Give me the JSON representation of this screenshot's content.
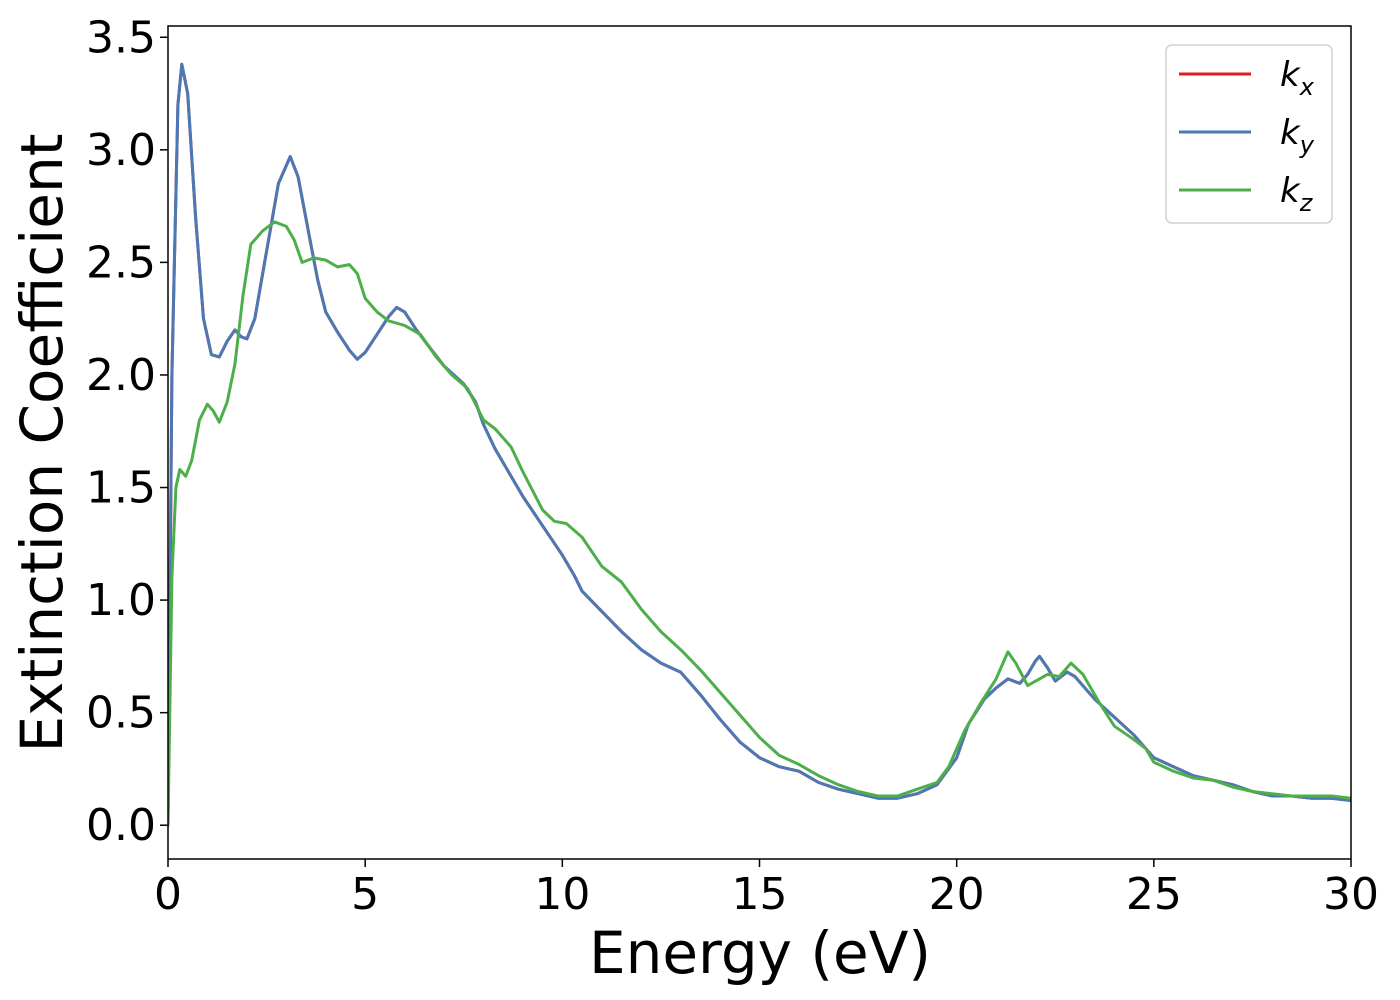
{
  "chart_data": {
    "type": "line",
    "xlabel": "Energy (eV)",
    "ylabel": "Extinction Coefficient",
    "xlim": [
      0,
      30
    ],
    "ylim": [
      -0.15,
      3.55
    ],
    "xticks": [
      0,
      5,
      10,
      15,
      20,
      25,
      30
    ],
    "xtick_labels": [
      "0",
      "5",
      "10",
      "15",
      "20",
      "25",
      "30"
    ],
    "yticks": [
      0.0,
      0.5,
      1.0,
      1.5,
      2.0,
      2.5,
      3.0,
      3.5
    ],
    "ytick_labels": [
      "0.0",
      "0.5",
      "1.0",
      "1.5",
      "2.0",
      "2.5",
      "3.0",
      "3.5"
    ],
    "grid": false,
    "legend_position": "top-right",
    "series": [
      {
        "name": "k_x",
        "legend_base": "k",
        "legend_sub": "x",
        "color": "#e41a1c",
        "points": [
          [
            0,
            0
          ],
          [
            0.1,
            2.0
          ],
          [
            0.25,
            3.2
          ],
          [
            0.35,
            3.38
          ],
          [
            0.5,
            3.25
          ],
          [
            0.7,
            2.7
          ],
          [
            0.9,
            2.25
          ],
          [
            1.1,
            2.09
          ],
          [
            1.3,
            2.08
          ],
          [
            1.5,
            2.15
          ],
          [
            1.7,
            2.2
          ],
          [
            1.85,
            2.17
          ],
          [
            2.0,
            2.16
          ],
          [
            2.2,
            2.25
          ],
          [
            2.5,
            2.55
          ],
          [
            2.8,
            2.85
          ],
          [
            3.1,
            2.97
          ],
          [
            3.3,
            2.88
          ],
          [
            3.6,
            2.6
          ],
          [
            3.8,
            2.42
          ],
          [
            4.0,
            2.28
          ],
          [
            4.3,
            2.19
          ],
          [
            4.6,
            2.11
          ],
          [
            4.8,
            2.07
          ],
          [
            5.0,
            2.1
          ],
          [
            5.3,
            2.18
          ],
          [
            5.6,
            2.26
          ],
          [
            5.8,
            2.3
          ],
          [
            6.0,
            2.28
          ],
          [
            6.3,
            2.2
          ],
          [
            6.6,
            2.13
          ],
          [
            7.0,
            2.04
          ],
          [
            7.5,
            1.96
          ],
          [
            7.8,
            1.88
          ],
          [
            8.0,
            1.78
          ],
          [
            8.3,
            1.67
          ],
          [
            8.7,
            1.55
          ],
          [
            9.0,
            1.46
          ],
          [
            9.5,
            1.33
          ],
          [
            10.0,
            1.2
          ],
          [
            10.3,
            1.11
          ],
          [
            10.5,
            1.04
          ],
          [
            11.0,
            0.95
          ],
          [
            11.5,
            0.86
          ],
          [
            12.0,
            0.78
          ],
          [
            12.5,
            0.72
          ],
          [
            13.0,
            0.68
          ],
          [
            13.5,
            0.58
          ],
          [
            14.0,
            0.47
          ],
          [
            14.5,
            0.37
          ],
          [
            15.0,
            0.3
          ],
          [
            15.5,
            0.26
          ],
          [
            16.0,
            0.24
          ],
          [
            16.5,
            0.19
          ],
          [
            17.0,
            0.16
          ],
          [
            17.5,
            0.14
          ],
          [
            18.0,
            0.12
          ],
          [
            18.5,
            0.12
          ],
          [
            19.0,
            0.14
          ],
          [
            19.5,
            0.18
          ],
          [
            20.0,
            0.3
          ],
          [
            20.3,
            0.45
          ],
          [
            20.7,
            0.56
          ],
          [
            21.0,
            0.61
          ],
          [
            21.3,
            0.65
          ],
          [
            21.6,
            0.63
          ],
          [
            21.8,
            0.67
          ],
          [
            22.0,
            0.73
          ],
          [
            22.1,
            0.75
          ],
          [
            22.3,
            0.7
          ],
          [
            22.5,
            0.64
          ],
          [
            22.8,
            0.68
          ],
          [
            23.0,
            0.66
          ],
          [
            23.5,
            0.56
          ],
          [
            24.0,
            0.48
          ],
          [
            24.5,
            0.4
          ],
          [
            25.0,
            0.3
          ],
          [
            25.5,
            0.26
          ],
          [
            26.0,
            0.22
          ],
          [
            26.5,
            0.2
          ],
          [
            27.0,
            0.18
          ],
          [
            27.5,
            0.15
          ],
          [
            28.0,
            0.13
          ],
          [
            28.5,
            0.13
          ],
          [
            29.0,
            0.12
          ],
          [
            29.5,
            0.12
          ],
          [
            30.0,
            0.11
          ]
        ]
      },
      {
        "name": "k_y",
        "legend_base": "k",
        "legend_sub": "y",
        "color": "#4a79b5",
        "points": [
          [
            0,
            0
          ],
          [
            0.1,
            2.0
          ],
          [
            0.25,
            3.2
          ],
          [
            0.35,
            3.38
          ],
          [
            0.5,
            3.25
          ],
          [
            0.7,
            2.7
          ],
          [
            0.9,
            2.25
          ],
          [
            1.1,
            2.09
          ],
          [
            1.3,
            2.08
          ],
          [
            1.5,
            2.15
          ],
          [
            1.7,
            2.2
          ],
          [
            1.85,
            2.17
          ],
          [
            2.0,
            2.16
          ],
          [
            2.2,
            2.25
          ],
          [
            2.5,
            2.55
          ],
          [
            2.8,
            2.85
          ],
          [
            3.1,
            2.97
          ],
          [
            3.3,
            2.88
          ],
          [
            3.6,
            2.6
          ],
          [
            3.8,
            2.42
          ],
          [
            4.0,
            2.28
          ],
          [
            4.3,
            2.19
          ],
          [
            4.6,
            2.11
          ],
          [
            4.8,
            2.07
          ],
          [
            5.0,
            2.1
          ],
          [
            5.3,
            2.18
          ],
          [
            5.6,
            2.26
          ],
          [
            5.8,
            2.3
          ],
          [
            6.0,
            2.28
          ],
          [
            6.3,
            2.2
          ],
          [
            6.6,
            2.13
          ],
          [
            7.0,
            2.04
          ],
          [
            7.5,
            1.96
          ],
          [
            7.8,
            1.88
          ],
          [
            8.0,
            1.78
          ],
          [
            8.3,
            1.67
          ],
          [
            8.7,
            1.55
          ],
          [
            9.0,
            1.46
          ],
          [
            9.5,
            1.33
          ],
          [
            10.0,
            1.2
          ],
          [
            10.3,
            1.11
          ],
          [
            10.5,
            1.04
          ],
          [
            11.0,
            0.95
          ],
          [
            11.5,
            0.86
          ],
          [
            12.0,
            0.78
          ],
          [
            12.5,
            0.72
          ],
          [
            13.0,
            0.68
          ],
          [
            13.5,
            0.58
          ],
          [
            14.0,
            0.47
          ],
          [
            14.5,
            0.37
          ],
          [
            15.0,
            0.3
          ],
          [
            15.5,
            0.26
          ],
          [
            16.0,
            0.24
          ],
          [
            16.5,
            0.19
          ],
          [
            17.0,
            0.16
          ],
          [
            17.5,
            0.14
          ],
          [
            18.0,
            0.12
          ],
          [
            18.5,
            0.12
          ],
          [
            19.0,
            0.14
          ],
          [
            19.5,
            0.18
          ],
          [
            20.0,
            0.3
          ],
          [
            20.3,
            0.45
          ],
          [
            20.7,
            0.56
          ],
          [
            21.0,
            0.61
          ],
          [
            21.3,
            0.65
          ],
          [
            21.6,
            0.63
          ],
          [
            21.8,
            0.67
          ],
          [
            22.0,
            0.73
          ],
          [
            22.1,
            0.75
          ],
          [
            22.3,
            0.7
          ],
          [
            22.5,
            0.64
          ],
          [
            22.8,
            0.68
          ],
          [
            23.0,
            0.66
          ],
          [
            23.5,
            0.56
          ],
          [
            24.0,
            0.48
          ],
          [
            24.5,
            0.4
          ],
          [
            25.0,
            0.3
          ],
          [
            25.5,
            0.26
          ],
          [
            26.0,
            0.22
          ],
          [
            26.5,
            0.2
          ],
          [
            27.0,
            0.18
          ],
          [
            27.5,
            0.15
          ],
          [
            28.0,
            0.13
          ],
          [
            28.5,
            0.13
          ],
          [
            29.0,
            0.12
          ],
          [
            29.5,
            0.12
          ],
          [
            30.0,
            0.11
          ]
        ]
      },
      {
        "name": "k_z",
        "legend_base": "k",
        "legend_sub": "z",
        "color": "#4daf4a",
        "points": [
          [
            0,
            0
          ],
          [
            0.1,
            1.1
          ],
          [
            0.2,
            1.5
          ],
          [
            0.3,
            1.58
          ],
          [
            0.45,
            1.55
          ],
          [
            0.6,
            1.62
          ],
          [
            0.8,
            1.8
          ],
          [
            1.0,
            1.87
          ],
          [
            1.15,
            1.84
          ],
          [
            1.3,
            1.79
          ],
          [
            1.5,
            1.88
          ],
          [
            1.7,
            2.05
          ],
          [
            1.9,
            2.35
          ],
          [
            2.1,
            2.58
          ],
          [
            2.4,
            2.64
          ],
          [
            2.7,
            2.68
          ],
          [
            3.0,
            2.66
          ],
          [
            3.2,
            2.6
          ],
          [
            3.4,
            2.5
          ],
          [
            3.7,
            2.52
          ],
          [
            4.0,
            2.51
          ],
          [
            4.3,
            2.48
          ],
          [
            4.6,
            2.49
          ],
          [
            4.8,
            2.45
          ],
          [
            5.0,
            2.34
          ],
          [
            5.3,
            2.28
          ],
          [
            5.6,
            2.24
          ],
          [
            6.0,
            2.22
          ],
          [
            6.4,
            2.18
          ],
          [
            6.8,
            2.08
          ],
          [
            7.2,
            2.0
          ],
          [
            7.6,
            1.94
          ],
          [
            8.0,
            1.8
          ],
          [
            8.3,
            1.76
          ],
          [
            8.7,
            1.68
          ],
          [
            9.0,
            1.57
          ],
          [
            9.5,
            1.4
          ],
          [
            9.8,
            1.35
          ],
          [
            10.1,
            1.34
          ],
          [
            10.5,
            1.28
          ],
          [
            11.0,
            1.15
          ],
          [
            11.5,
            1.08
          ],
          [
            12.0,
            0.96
          ],
          [
            12.5,
            0.86
          ],
          [
            13.0,
            0.78
          ],
          [
            13.5,
            0.69
          ],
          [
            14.0,
            0.59
          ],
          [
            14.5,
            0.49
          ],
          [
            15.0,
            0.39
          ],
          [
            15.5,
            0.31
          ],
          [
            16.0,
            0.27
          ],
          [
            16.5,
            0.22
          ],
          [
            17.0,
            0.18
          ],
          [
            17.5,
            0.15
          ],
          [
            18.0,
            0.13
          ],
          [
            18.5,
            0.13
          ],
          [
            19.0,
            0.16
          ],
          [
            19.5,
            0.19
          ],
          [
            19.8,
            0.26
          ],
          [
            20.2,
            0.42
          ],
          [
            20.6,
            0.54
          ],
          [
            21.0,
            0.65
          ],
          [
            21.3,
            0.77
          ],
          [
            21.5,
            0.72
          ],
          [
            21.8,
            0.62
          ],
          [
            22.1,
            0.65
          ],
          [
            22.3,
            0.67
          ],
          [
            22.6,
            0.66
          ],
          [
            22.9,
            0.72
          ],
          [
            23.2,
            0.67
          ],
          [
            23.6,
            0.55
          ],
          [
            24.0,
            0.44
          ],
          [
            24.5,
            0.38
          ],
          [
            24.8,
            0.34
          ],
          [
            25.0,
            0.28
          ],
          [
            25.5,
            0.24
          ],
          [
            26.0,
            0.21
          ],
          [
            26.5,
            0.2
          ],
          [
            27.0,
            0.17
          ],
          [
            27.5,
            0.15
          ],
          [
            28.0,
            0.14
          ],
          [
            28.5,
            0.13
          ],
          [
            29.0,
            0.13
          ],
          [
            29.5,
            0.13
          ],
          [
            30.0,
            0.12
          ]
        ]
      }
    ]
  }
}
